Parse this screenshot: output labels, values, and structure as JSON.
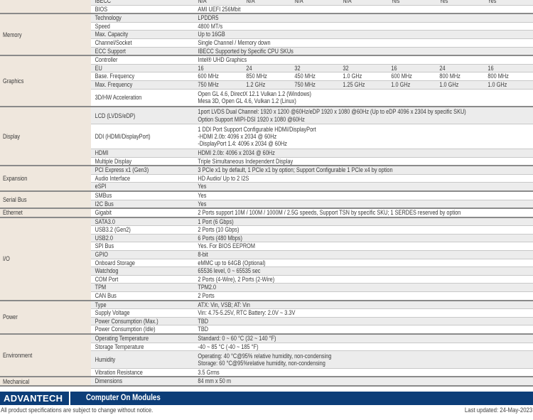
{
  "spec": {
    "groups": [
      {
        "category": "",
        "rows": [
          {
            "label": "IBECC",
            "cols": [
              "N/A",
              "N/A",
              "N/A",
              "N/A",
              "Yes",
              "Yes",
              "Yes"
            ]
          },
          {
            "label": "BIOS",
            "value": [
              "AMI UEFI 256Mbit"
            ]
          }
        ]
      },
      {
        "category": "Memory",
        "rows": [
          {
            "label": "Technology",
            "value": [
              "LPDDR5"
            ]
          },
          {
            "label": "Speed",
            "value": [
              "4800 MT/s"
            ]
          },
          {
            "label": "Max. Capacity",
            "value": [
              "Up to 16GB"
            ]
          },
          {
            "label": "Channel/Socket",
            "value": [
              "Single Channel / Memory down"
            ]
          },
          {
            "label": "ECC Support",
            "value": [
              "IBECC Supported by Specific CPU SKUs"
            ]
          }
        ]
      },
      {
        "category": "Graphics",
        "rows": [
          {
            "label": "Controller",
            "value": [
              "Intel® UHD Graphics"
            ]
          },
          {
            "label": "EU",
            "cols": [
              "16",
              "24",
              "32",
              "32",
              "16",
              "24",
              "16"
            ]
          },
          {
            "label": "Base. Frequency",
            "cols": [
              "600 MHz",
              "850 MHz",
              "450 MHz",
              "1.0 GHz",
              "600 MHz",
              "800 MHz",
              "800 MHz"
            ]
          },
          {
            "label": "Max. Frequency",
            "cols": [
              "750 MHz",
              "1.2 GHz",
              "750 MHz",
              "1.25 GHz",
              "1.0 GHz",
              "1.0 GHz",
              "1.0 GHz"
            ]
          },
          {
            "label": "3D/HW Acceleration",
            "value": [
              "Open GL 4.6, DirectX 12.1 Vulkan 1.2 (Windows)",
              "Mesa 3D, Open GL 4.6, Vulkan 1.2 (Linux)"
            ]
          }
        ]
      },
      {
        "category": "Display",
        "rows": [
          {
            "label": "LCD (LVDS/eDP)",
            "value": [
              "1port LVDS Dual Channel: 1920 x 1200 @60Hz/eDP 1920 x 1080 @60Hz (Up to eDP 4096 x 2304 by specific SKU)",
              "Option Support MIPI-DSI 1920 x 1080 @60Hz"
            ]
          },
          {
            "label": "DDI (HDMI/DisplayPort)",
            "value": [
              "1 DDI Port Support Configurable HDMI/DisplayPort",
              "-HDMI 2.0b: 4096 x 2034 @ 60Hz",
              "-DisplayPort 1.4: 4096 x 2034 @ 60Hz"
            ]
          },
          {
            "label": "HDMI",
            "value": [
              "HDMI 2.0b: 4096 x 2034 @ 60Hz"
            ]
          },
          {
            "label": "Multiple Display",
            "value": [
              "Triple Simultaneous Independent Display"
            ]
          }
        ]
      },
      {
        "category": "Expansion",
        "rows": [
          {
            "label": "PCI Express x1 (Gen3)",
            "value": [
              "3 PCIe x1 by default, 1 PCIe x1 by option; Support Configurable 1 PCIe x4 by option"
            ]
          },
          {
            "label": "Audio Interface",
            "value": [
              "HD Audio/ Up to 2 I2S"
            ]
          },
          {
            "label": "eSPI",
            "value": [
              "Yes"
            ]
          }
        ]
      },
      {
        "category": "Serial Bus",
        "rows": [
          {
            "label": "SMBus",
            "value": [
              "Yes"
            ]
          },
          {
            "label": "I2C Bus",
            "value": [
              "Yes"
            ]
          }
        ]
      },
      {
        "category": "Ethernet",
        "rows": [
          {
            "label": "Gigabit",
            "value": [
              "2 Ports support 10M / 100M / 1000M / 2.5G speeds, Support TSN by specific SKU; 1 SERDES reserved by option"
            ]
          }
        ]
      },
      {
        "category": "I/O",
        "rows": [
          {
            "label": "SATA3.0",
            "value": [
              "1 Port (6 Gbps)"
            ]
          },
          {
            "label": "USB3.2 (Gen2)",
            "value": [
              "2 Ports (10 Gbps)"
            ]
          },
          {
            "label": "USB2.0",
            "value": [
              "6 Ports (480 Mbps)"
            ]
          },
          {
            "label": "SPI Bus",
            "value": [
              "Yes. For BIOS EEPROM"
            ]
          },
          {
            "label": "GPIO",
            "value": [
              "8-bit"
            ]
          },
          {
            "label": "Onboard Storage",
            "value": [
              "eMMC up to 64GB (Optional)"
            ]
          },
          {
            "label": "Watchdog",
            "value": [
              "65536 level, 0 ~ 65535 sec"
            ]
          },
          {
            "label": "COM Port",
            "value": [
              "2 Ports (4-Wire), 2 Ports (2-Wire)"
            ]
          },
          {
            "label": "TPM",
            "value": [
              "TPM2.0"
            ]
          },
          {
            "label": "CAN Bus",
            "value": [
              "2 Ports"
            ]
          }
        ]
      },
      {
        "category": "Power",
        "rows": [
          {
            "label": "Type",
            "value": [
              "ATX: Vin, VSB; AT: Vin"
            ]
          },
          {
            "label": "Supply Voltage",
            "value": [
              "Vin: 4.75-5.25V, RTC Battery: 2.0V ~ 3.3V"
            ]
          },
          {
            "label": "Power Consumption (Max.)",
            "value": [
              "TBD"
            ]
          },
          {
            "label": "Power Consumption (Idle)",
            "value": [
              "TBD"
            ]
          }
        ]
      },
      {
        "category": "Environment",
        "rows": [
          {
            "label": "Operating Temperature",
            "value": [
              "Standard: 0 ~ 60 °C (32 ~ 140 °F)"
            ]
          },
          {
            "label": "Storage Temperature",
            "value": [
              "-40 ~ 85 °C (-40 ~ 185 °F)"
            ]
          },
          {
            "label": "Humidity",
            "value": [
              "Operating: 40 °C@95% relative humidity, non-condensing",
              "Storage: 60 °C@95%relative humidity, non-condensing"
            ]
          },
          {
            "label": "Vibration Resistance",
            "value": [
              "3.5 Grms"
            ]
          }
        ]
      },
      {
        "category": "Mechanical",
        "rows": [
          {
            "label": "Dimensions",
            "value": [
              "84 mm x 50 m"
            ]
          }
        ]
      }
    ]
  },
  "footer": {
    "logo": "ADVANTECH",
    "product_line": "Computer On Modules",
    "disclaimer": "All product specifications are subject to change without notice.",
    "last_updated": "Last updated: 24-May-2023",
    "brand_color": "#0c3d78"
  }
}
